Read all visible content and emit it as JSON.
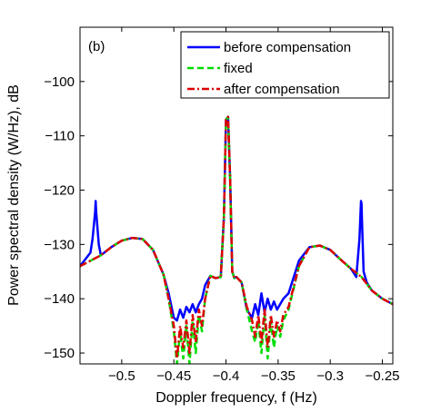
{
  "chart_data": {
    "type": "line",
    "panel_label": "(b)",
    "title": "",
    "xlabel": "Doppler frequency, f (Hz)",
    "ylabel": "Power spectral density (W/Hz), dB",
    "xlim": [
      -0.54,
      -0.24
    ],
    "ylim": [
      -152,
      -90
    ],
    "xticks": [
      -0.5,
      -0.45,
      -0.4,
      -0.35,
      -0.3,
      -0.25
    ],
    "xtick_labels": [
      "−0.5",
      "−0.45",
      "−0.4",
      "−0.35",
      "−0.3",
      "−0.25"
    ],
    "yticks": [
      -150,
      -140,
      -130,
      -120,
      -110,
      -100
    ],
    "ytick_labels": [
      "−150",
      "−140",
      "−130",
      "−120",
      "−110",
      "−100"
    ],
    "grid": false,
    "legend_position": "top-right",
    "series": [
      {
        "name": "before compensation",
        "color": "#0000ff",
        "dash": "solid",
        "x": [
          -0.54,
          -0.53,
          -0.528,
          -0.5255,
          -0.525,
          -0.5245,
          -0.522,
          -0.52,
          -0.51,
          -0.5,
          -0.49,
          -0.48,
          -0.47,
          -0.46,
          -0.455,
          -0.45,
          -0.447,
          -0.444,
          -0.441,
          -0.438,
          -0.435,
          -0.432,
          -0.429,
          -0.426,
          -0.423,
          -0.42,
          -0.415,
          -0.41,
          -0.405,
          -0.402,
          -0.4,
          -0.398,
          -0.396,
          -0.394,
          -0.392,
          -0.39,
          -0.385,
          -0.38,
          -0.375,
          -0.372,
          -0.369,
          -0.366,
          -0.363,
          -0.36,
          -0.357,
          -0.354,
          -0.351,
          -0.348,
          -0.345,
          -0.34,
          -0.33,
          -0.32,
          -0.31,
          -0.3,
          -0.29,
          -0.28,
          -0.275,
          -0.272,
          -0.2705,
          -0.27,
          -0.2695,
          -0.268,
          -0.265,
          -0.26,
          -0.25,
          -0.24
        ],
        "y": [
          -134,
          -131.5,
          -129,
          -124,
          -122,
          -124,
          -130,
          -132,
          -130.5,
          -129.3,
          -128.8,
          -129,
          -131,
          -135.5,
          -139,
          -143.5,
          -144,
          -142,
          -143.5,
          -141.5,
          -142.5,
          -141,
          -142.5,
          -141,
          -140,
          -137.5,
          -135.8,
          -136.2,
          -136,
          -125,
          -107,
          -106.5,
          -118,
          -135,
          -136.2,
          -136,
          -137,
          -142,
          -143.5,
          -141,
          -143,
          -139,
          -142.5,
          -140,
          -142,
          -140.5,
          -142,
          -141,
          -140,
          -139,
          -133,
          -130.5,
          -130.2,
          -131,
          -132.8,
          -134.5,
          -136,
          -129,
          -122,
          -122.5,
          -126,
          -135,
          -137,
          -138.5,
          -140,
          -141
        ]
      },
      {
        "name": "fixed",
        "color": "#00dd00",
        "dash": "dashed",
        "x": [
          -0.54,
          -0.53,
          -0.52,
          -0.51,
          -0.5,
          -0.49,
          -0.48,
          -0.47,
          -0.46,
          -0.455,
          -0.45,
          -0.447,
          -0.444,
          -0.441,
          -0.438,
          -0.435,
          -0.432,
          -0.429,
          -0.426,
          -0.423,
          -0.42,
          -0.415,
          -0.41,
          -0.405,
          -0.402,
          -0.4,
          -0.398,
          -0.396,
          -0.394,
          -0.392,
          -0.39,
          -0.385,
          -0.38,
          -0.375,
          -0.372,
          -0.369,
          -0.366,
          -0.363,
          -0.36,
          -0.357,
          -0.354,
          -0.351,
          -0.348,
          -0.345,
          -0.34,
          -0.33,
          -0.32,
          -0.31,
          -0.3,
          -0.29,
          -0.28,
          -0.27,
          -0.26,
          -0.25,
          -0.24
        ],
        "y": [
          -134,
          -133,
          -132,
          -130.5,
          -129.3,
          -128.8,
          -129,
          -131,
          -135.5,
          -140,
          -146,
          -152,
          -146,
          -151,
          -145,
          -152,
          -144,
          -150,
          -143,
          -146,
          -140,
          -135.8,
          -136.2,
          -136,
          -125,
          -107,
          -106.5,
          -118,
          -135,
          -136.2,
          -136,
          -137,
          -142,
          -146,
          -148,
          -144,
          -150,
          -143,
          -151,
          -144,
          -149,
          -145,
          -147,
          -144,
          -142,
          -134,
          -130.5,
          -130.2,
          -131,
          -132.8,
          -134.5,
          -136,
          -138.5,
          -140,
          -141
        ]
      },
      {
        "name": "after compensation",
        "color": "#dd0000",
        "dash": "dashdot",
        "x": [
          -0.54,
          -0.53,
          -0.52,
          -0.51,
          -0.5,
          -0.49,
          -0.48,
          -0.47,
          -0.46,
          -0.455,
          -0.45,
          -0.447,
          -0.444,
          -0.441,
          -0.438,
          -0.435,
          -0.432,
          -0.429,
          -0.426,
          -0.423,
          -0.42,
          -0.415,
          -0.41,
          -0.405,
          -0.402,
          -0.4,
          -0.398,
          -0.396,
          -0.394,
          -0.392,
          -0.39,
          -0.385,
          -0.38,
          -0.375,
          -0.372,
          -0.369,
          -0.366,
          -0.363,
          -0.36,
          -0.357,
          -0.354,
          -0.351,
          -0.348,
          -0.345,
          -0.34,
          -0.33,
          -0.32,
          -0.31,
          -0.3,
          -0.29,
          -0.28,
          -0.27,
          -0.26,
          -0.25,
          -0.24
        ],
        "y": [
          -134,
          -133,
          -132,
          -130.5,
          -129.3,
          -128.8,
          -129,
          -131,
          -135.5,
          -140,
          -145,
          -151,
          -145,
          -149,
          -144,
          -150,
          -143,
          -148,
          -142,
          -145,
          -140,
          -135.8,
          -136.2,
          -136,
          -125,
          -107,
          -106.5,
          -118,
          -135,
          -136.2,
          -136,
          -137,
          -141.5,
          -144,
          -147,
          -143,
          -148,
          -142,
          -149,
          -143,
          -147,
          -144,
          -146,
          -143,
          -141.5,
          -134,
          -130.5,
          -130.2,
          -131,
          -132.8,
          -134.5,
          -136,
          -138.5,
          -140,
          -141
        ]
      }
    ]
  }
}
